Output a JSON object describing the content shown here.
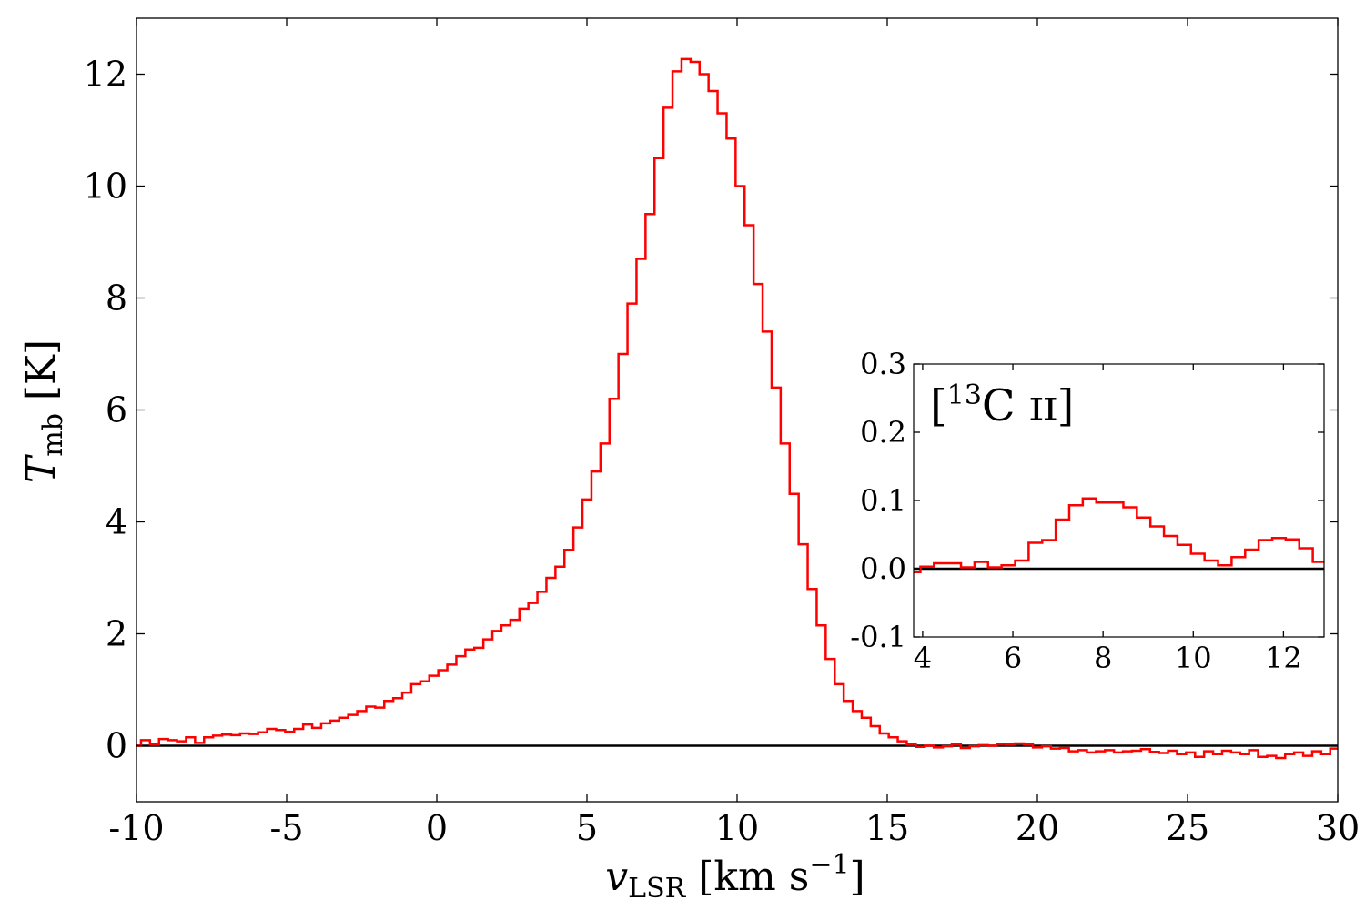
{
  "chart_data": [
    {
      "type": "line",
      "drawstyle": "steps-mid",
      "title": "",
      "xlabel": "v",
      "xlabel_sub": "LSR",
      "xlabel_units": " [km s",
      "xlabel_units_sup": "−1",
      "xlabel_units_close": "]",
      "ylabel": "T",
      "ylabel_sub": "mb",
      "ylabel_units": " [K]",
      "xlim": [
        -10,
        30
      ],
      "ylim": [
        -1,
        13
      ],
      "x_ticks": [
        -10,
        -5,
        0,
        5,
        10,
        15,
        20,
        25,
        30
      ],
      "x_tick_labels": [
        "-10",
        "-5",
        "0",
        "5",
        "10",
        "15",
        "20",
        "25",
        "30"
      ],
      "y_ticks": [
        0,
        2,
        4,
        6,
        8,
        10,
        12
      ],
      "y_tick_labels": [
        "0",
        "2",
        "4",
        "6",
        "8",
        "10",
        "12"
      ],
      "grid": false,
      "line_color": "#ff0000",
      "zero_line_color": "#000000",
      "series": [
        {
          "x": [
            -10.0,
            -9.7,
            -9.4,
            -9.1,
            -8.8,
            -8.5,
            -8.2,
            -7.9,
            -7.6,
            -7.3,
            -7.0,
            -6.7,
            -6.4,
            -6.1,
            -5.8,
            -5.5,
            -5.2,
            -4.9,
            -4.6,
            -4.3,
            -4.0,
            -3.7,
            -3.4,
            -3.1,
            -2.8,
            -2.5,
            -2.2,
            -1.9,
            -1.6,
            -1.3,
            -1.0,
            -0.7,
            -0.4,
            -0.1,
            0.2,
            0.5,
            0.8,
            1.1,
            1.4,
            1.7,
            2.0,
            2.3,
            2.6,
            2.9,
            3.2,
            3.5,
            3.8,
            4.1,
            4.4,
            4.7,
            5.0,
            5.3,
            5.6,
            5.9,
            6.2,
            6.5,
            6.8,
            7.1,
            7.4,
            7.7,
            8.0,
            8.3,
            8.6,
            8.9,
            9.2,
            9.5,
            9.8,
            10.1,
            10.4,
            10.7,
            11.0,
            11.3,
            11.6,
            11.9,
            12.2,
            12.5,
            12.8,
            13.1,
            13.4,
            13.7,
            14.0,
            14.3,
            14.6,
            14.9,
            15.2,
            15.5,
            15.8,
            16.1,
            16.4,
            16.7,
            17.0,
            17.3,
            17.6,
            17.9,
            18.2,
            18.5,
            18.8,
            19.1,
            19.4,
            19.7,
            20.0,
            20.3,
            20.6,
            20.9,
            21.2,
            21.5,
            21.8,
            22.1,
            22.4,
            22.7,
            23.0,
            23.3,
            23.6,
            23.9,
            24.2,
            24.5,
            24.8,
            25.1,
            25.4,
            25.7,
            26.0,
            26.3,
            26.6,
            26.9,
            27.2,
            27.5,
            27.8,
            28.1,
            28.4,
            28.7,
            29.0,
            29.3,
            29.6,
            29.9
          ],
          "y": [
            0.0,
            0.1,
            0.02,
            0.12,
            0.1,
            0.08,
            0.15,
            0.05,
            0.15,
            0.18,
            0.2,
            0.19,
            0.22,
            0.21,
            0.24,
            0.3,
            0.28,
            0.25,
            0.3,
            0.38,
            0.32,
            0.4,
            0.45,
            0.5,
            0.55,
            0.62,
            0.7,
            0.68,
            0.8,
            0.85,
            0.95,
            1.1,
            1.15,
            1.25,
            1.35,
            1.45,
            1.6,
            1.72,
            1.75,
            1.9,
            2.05,
            2.15,
            2.25,
            2.45,
            2.55,
            2.75,
            3.0,
            3.2,
            3.5,
            3.9,
            4.4,
            4.9,
            5.4,
            6.2,
            7.0,
            7.9,
            8.7,
            9.5,
            10.5,
            11.4,
            12.05,
            12.27,
            12.22,
            12.0,
            11.7,
            11.3,
            10.85,
            10.0,
            9.3,
            8.25,
            7.4,
            6.4,
            5.4,
            4.5,
            3.6,
            2.8,
            2.15,
            1.55,
            1.1,
            0.8,
            0.62,
            0.5,
            0.35,
            0.22,
            0.15,
            0.08,
            0.02,
            -0.02,
            0.0,
            -0.03,
            -0.01,
            0.02,
            -0.04,
            -0.01,
            0.01,
            0.0,
            0.03,
            0.02,
            0.04,
            0.02,
            -0.03,
            -0.01,
            -0.05,
            -0.04,
            -0.1,
            -0.08,
            -0.12,
            -0.1,
            -0.08,
            -0.12,
            -0.1,
            -0.09,
            -0.06,
            -0.11,
            -0.13,
            -0.09,
            -0.15,
            -0.12,
            -0.2,
            -0.1,
            -0.15,
            -0.09,
            -0.12,
            -0.15,
            -0.08,
            -0.2,
            -0.18,
            -0.22,
            -0.15,
            -0.12,
            -0.18,
            -0.1,
            -0.15,
            -0.05
          ]
        }
      ]
    },
    {
      "type": "line",
      "drawstyle": "steps-mid",
      "inset": true,
      "title": "[",
      "title_sup": "13",
      "title_rest": "C ɪɪ]",
      "xlim": [
        3.8,
        12.9
      ],
      "ylim": [
        -0.1,
        0.3
      ],
      "x_ticks": [
        4,
        6,
        8,
        10,
        12
      ],
      "x_tick_labels": [
        "4",
        "6",
        "8",
        "10",
        "12"
      ],
      "y_ticks": [
        -0.1,
        0.0,
        0.1,
        0.2,
        0.3
      ],
      "y_tick_labels": [
        "-0.1",
        "0.0",
        "0.1",
        "0.2",
        "0.3"
      ],
      "grid": false,
      "line_color": "#ff0000",
      "zero_line_color": "#000000",
      "series": [
        {
          "x": [
            3.8,
            4.1,
            4.4,
            4.7,
            5.0,
            5.3,
            5.6,
            5.9,
            6.2,
            6.5,
            6.8,
            7.1,
            7.4,
            7.7,
            8.0,
            8.3,
            8.6,
            8.9,
            9.2,
            9.5,
            9.8,
            10.1,
            10.4,
            10.7,
            11.0,
            11.3,
            11.6,
            11.9,
            12.2,
            12.5,
            12.8
          ],
          "y": [
            -0.005,
            0.003,
            0.008,
            0.008,
            0.002,
            0.01,
            0.002,
            0.005,
            0.012,
            0.038,
            0.042,
            0.072,
            0.093,
            0.103,
            0.097,
            0.097,
            0.09,
            0.075,
            0.062,
            0.048,
            0.035,
            0.022,
            0.012,
            0.005,
            0.017,
            0.028,
            0.042,
            0.045,
            0.043,
            0.03,
            0.01
          ]
        }
      ]
    }
  ]
}
